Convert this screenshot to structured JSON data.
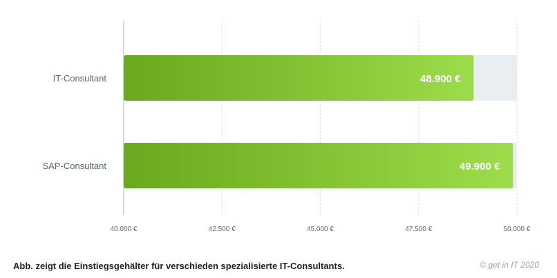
{
  "chart_data": {
    "type": "bar",
    "orientation": "horizontal",
    "categories": [
      "IT-Consultant",
      "SAP-Consultant"
    ],
    "values": [
      48900,
      49900
    ],
    "value_labels": [
      "48.900 €",
      "49.900 €"
    ],
    "xlim": [
      40000,
      50000
    ],
    "x_ticks": [
      40000,
      42500,
      45000,
      47500,
      50000
    ],
    "x_tick_labels": [
      "40.000 €",
      "42.500 €",
      "45.000 €",
      "47.500 €",
      "50.000 €"
    ],
    "grid": "vertical dotted",
    "colors": {
      "bar_start": "#6aa81e",
      "bar_end": "#9ddc4a",
      "track": "#e8eef2",
      "grid": "#cfd6dc",
      "axis": "#c8d0d6"
    }
  },
  "caption": "Abb. zeigt die Einstiegsgehälter für verschieden spezialisierte IT-Consultants.",
  "credit": "© get in IT 2020"
}
